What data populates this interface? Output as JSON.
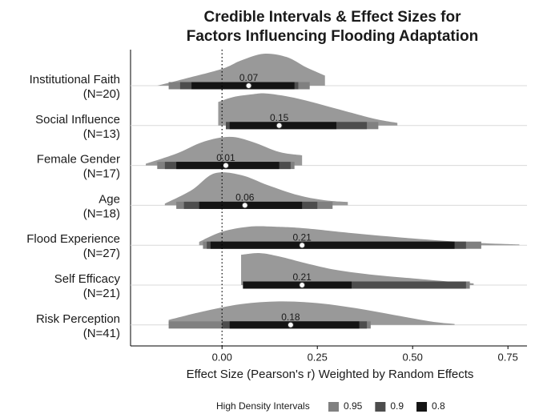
{
  "chart_data": {
    "type": "halfeye",
    "title": [
      "Credible Intervals & Effect Sizes for",
      "Factors Influencing Flooding Adaptation"
    ],
    "x_label": "Effect Size (Pearson's r) Weighted by Random Effects",
    "xlim": [
      -0.24,
      0.8
    ],
    "xticks": [
      {
        "value": 0,
        "label": "0.00"
      },
      {
        "value": 0.25,
        "label": "0.25"
      },
      {
        "value": 0.5,
        "label": "0.50"
      },
      {
        "value": 0.75,
        "label": "0.75"
      }
    ],
    "reference_line": 0,
    "grid": true,
    "density_color": "#999999",
    "legend_title": "High Density Intervals",
    "interval_levels": [
      {
        "name": "0.95",
        "color": "#808080"
      },
      {
        "name": "0.9",
        "color": "#4d4d4d"
      },
      {
        "name": "0.8",
        "color": "#141414"
      }
    ],
    "rows": [
      {
        "label": "Institutional Faith",
        "n": "(N=20)",
        "median": 0.07,
        "intervals": [
          [
            -0.14,
            0.23
          ],
          [
            -0.11,
            0.2
          ],
          [
            -0.08,
            0.19
          ]
        ],
        "density_x": [
          -0.17,
          -0.1,
          0,
          0.05,
          0.11,
          0.17,
          0.22,
          0.27
        ],
        "density": [
          0,
          0.2,
          0.5,
          0.75,
          0.95,
          0.85,
          0.55,
          0.3
        ]
      },
      {
        "label": "Social Influence",
        "n": "(N=13)",
        "median": 0.15,
        "intervals": [
          [
            0.01,
            0.41
          ],
          [
            0.01,
            0.38
          ],
          [
            0.02,
            0.3
          ]
        ],
        "density_x": [
          -0.01,
          0.03,
          0.08,
          0.12,
          0.2,
          0.3,
          0.4,
          0.46
        ],
        "density": [
          0.7,
          0.85,
          0.93,
          0.95,
          0.8,
          0.5,
          0.2,
          0.08
        ]
      },
      {
        "label": "Female Gender",
        "n": "(N=17)",
        "median": 0.01,
        "intervals": [
          [
            -0.17,
            0.19
          ],
          [
            -0.15,
            0.18
          ],
          [
            -0.12,
            0.15
          ]
        ],
        "density_x": [
          -0.2,
          -0.12,
          -0.05,
          0.02,
          0.08,
          0.15,
          0.21
        ],
        "density": [
          0.05,
          0.35,
          0.7,
          0.85,
          0.7,
          0.4,
          0.3
        ]
      },
      {
        "label": "Age",
        "n": "(N=18)",
        "median": 0.06,
        "intervals": [
          [
            -0.12,
            0.29
          ],
          [
            -0.1,
            0.25
          ],
          [
            -0.06,
            0.21
          ]
        ],
        "density_x": [
          -0.15,
          -0.08,
          -0.02,
          0.05,
          0.12,
          0.2,
          0.27,
          0.33
        ],
        "density": [
          0.05,
          0.45,
          0.95,
          0.9,
          0.6,
          0.3,
          0.15,
          0.1
        ]
      },
      {
        "label": "Flood Experience",
        "n": "(N=27)",
        "median": 0.21,
        "intervals": [
          [
            -0.05,
            0.68
          ],
          [
            -0.04,
            0.64
          ],
          [
            -0.03,
            0.61
          ]
        ],
        "density_x": [
          -0.06,
          0,
          0.07,
          0.14,
          0.22,
          0.35,
          0.5,
          0.65,
          0.78
        ],
        "density": [
          0.1,
          0.4,
          0.55,
          0.55,
          0.5,
          0.35,
          0.2,
          0.08,
          0.02
        ]
      },
      {
        "label": "Self Efficacy",
        "n": "(N=21)",
        "median": 0.21,
        "intervals": [
          [
            0.055,
            0.65
          ],
          [
            0.055,
            0.64
          ],
          [
            0.055,
            0.34
          ]
        ],
        "density_x": [
          0.05,
          0.1,
          0.15,
          0.22,
          0.3,
          0.4,
          0.5,
          0.6,
          0.66
        ],
        "density": [
          0.9,
          0.95,
          0.85,
          0.65,
          0.45,
          0.3,
          0.2,
          0.1,
          0.05
        ]
      },
      {
        "label": "Risk Perception",
        "n": "(N=41)",
        "median": 0.18,
        "intervals": [
          [
            -0.14,
            0.39
          ],
          [
            0,
            0.38
          ],
          [
            0.02,
            0.36
          ]
        ],
        "density_x": [
          -0.14,
          -0.05,
          0.05,
          0.15,
          0.25,
          0.35,
          0.45,
          0.55,
          0.61
        ],
        "density": [
          0.15,
          0.4,
          0.62,
          0.7,
          0.65,
          0.5,
          0.3,
          0.1,
          0.03
        ]
      }
    ]
  }
}
